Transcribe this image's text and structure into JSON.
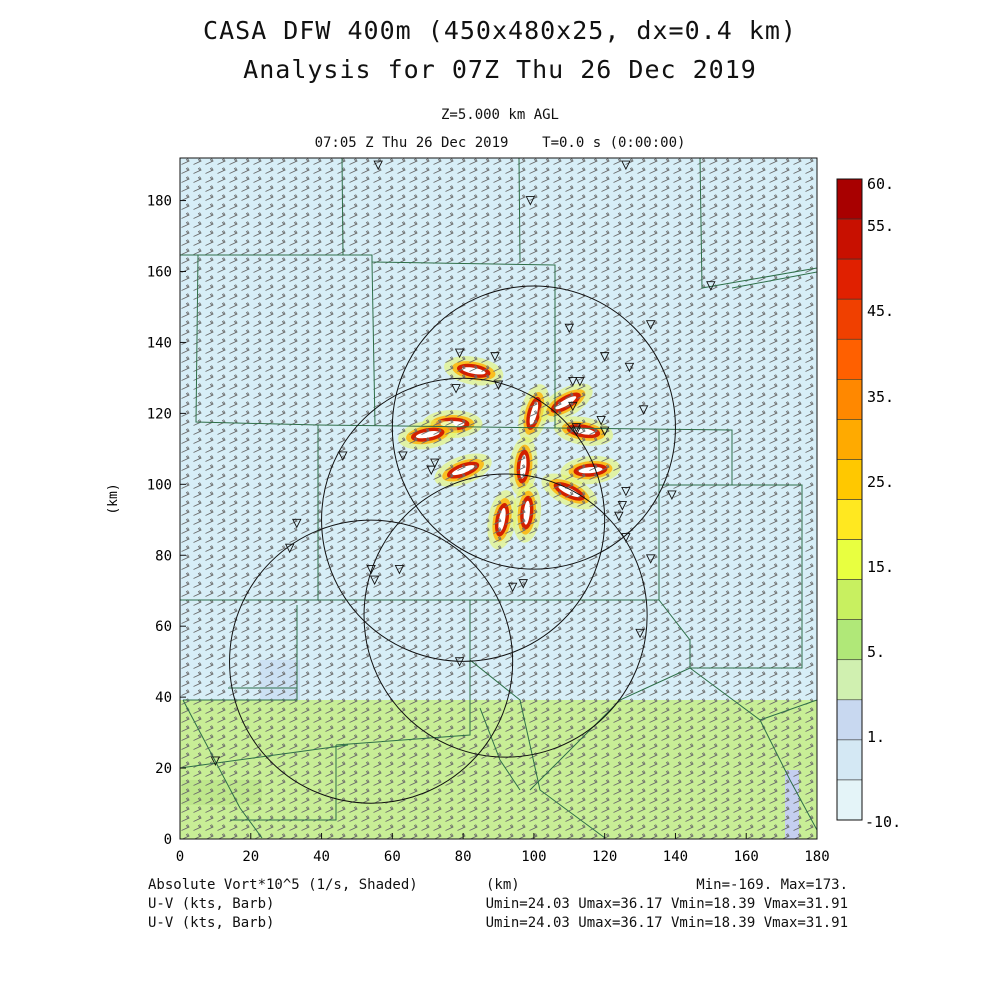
{
  "title": {
    "line1": "CASA DFW 400m (450x480x25, dx=0.4 km)",
    "line2": "Analysis for 07Z Thu 26 Dec 2019"
  },
  "subtitle": {
    "level": "Z=5.000 km AGL",
    "time": "07:05 Z Thu 26 Dec 2019    T=0.0 s (0:00:00)"
  },
  "axes": {
    "xlabel": "(km)",
    "ylabel": "(km)",
    "x_ticks": [
      "0",
      "20",
      "40",
      "60",
      "80",
      "100",
      "120",
      "140",
      "160",
      "180"
    ],
    "y_ticks": [
      "0",
      "20",
      "40",
      "60",
      "80",
      "100",
      "120",
      "140",
      "160",
      "180"
    ],
    "xlim": [
      0,
      180
    ],
    "ylim": [
      0,
      192
    ]
  },
  "colorbar": {
    "labels": [
      "60.",
      "55.",
      "45.",
      "35.",
      "25.",
      "15.",
      "5.",
      "1.",
      "-10."
    ],
    "colors": [
      "#a80000",
      "#c81000",
      "#e02000",
      "#f04000",
      "#ff6000",
      "#ff8800",
      "#ffaa00",
      "#ffc800",
      "#ffe820",
      "#e8ff40",
      "#c8f060",
      "#b0e878",
      "#d0f0b0",
      "#c8d8f0",
      "#d4e8f4",
      "#e4f4f8"
    ]
  },
  "footer": {
    "field_label": "Absolute Vort*10^5 (1/s, Shaded)",
    "axis_unit": "(km)",
    "minmax": "Min=-169. Max=173.",
    "barb1_label": "U-V (kts, Barb)",
    "barb1_stats": "Umin=24.03 Umax=36.17 Vmin=18.39 Vmax=31.91",
    "barb2_label": "U-V (kts, Barb)",
    "barb2_stats": "Umin=24.03 Umax=36.17 Vmin=18.39 Vmax=31.91"
  },
  "map_data": {
    "radar_range_rings": [
      {
        "cx": 100,
        "cy": 116,
        "r": 40
      },
      {
        "cx": 80,
        "cy": 90,
        "r": 40
      },
      {
        "cx": 92,
        "cy": 63,
        "r": 40
      },
      {
        "cx": 54,
        "cy": 50,
        "r": 40
      }
    ],
    "vorticity_maxima": [
      {
        "x": 100,
        "y": 120,
        "dir": 75
      },
      {
        "x": 109,
        "y": 123,
        "dir": 30
      },
      {
        "x": 114,
        "y": 115,
        "dir": -10
      },
      {
        "x": 97,
        "y": 105,
        "dir": 85
      },
      {
        "x": 91,
        "y": 90,
        "dir": 80
      },
      {
        "x": 98,
        "y": 92,
        "dir": 85
      },
      {
        "x": 110,
        "y": 98,
        "dir": -25
      },
      {
        "x": 116,
        "y": 104,
        "dir": 5
      },
      {
        "x": 80,
        "y": 104,
        "dir": 20
      },
      {
        "x": 83,
        "y": 132,
        "dir": -10
      },
      {
        "x": 77,
        "y": 117,
        "dir": 0
      },
      {
        "x": 70,
        "y": 114,
        "dir": 10
      }
    ],
    "stations": [
      [
        56,
        190
      ],
      [
        126,
        190
      ],
      [
        99,
        180
      ],
      [
        150,
        156
      ],
      [
        110,
        144
      ],
      [
        133,
        145
      ],
      [
        120,
        136
      ],
      [
        127,
        133
      ],
      [
        79,
        137
      ],
      [
        89,
        136
      ],
      [
        111,
        129
      ],
      [
        113,
        129
      ],
      [
        90,
        128
      ],
      [
        78,
        127
      ],
      [
        111,
        122
      ],
      [
        131,
        121
      ],
      [
        119,
        118
      ],
      [
        112,
        116
      ],
      [
        112,
        115
      ],
      [
        120,
        115
      ],
      [
        46,
        108
      ],
      [
        63,
        108
      ],
      [
        72,
        106
      ],
      [
        71,
        104
      ],
      [
        126,
        98
      ],
      [
        125,
        94
      ],
      [
        139,
        97
      ],
      [
        124,
        91
      ],
      [
        33,
        89
      ],
      [
        31,
        82
      ],
      [
        126,
        85
      ],
      [
        133,
        79
      ],
      [
        54,
        76
      ],
      [
        55,
        73
      ],
      [
        62,
        76
      ],
      [
        97,
        72
      ],
      [
        94,
        71
      ],
      [
        130,
        58
      ],
      [
        79,
        50
      ],
      [
        10,
        22
      ]
    ]
  }
}
